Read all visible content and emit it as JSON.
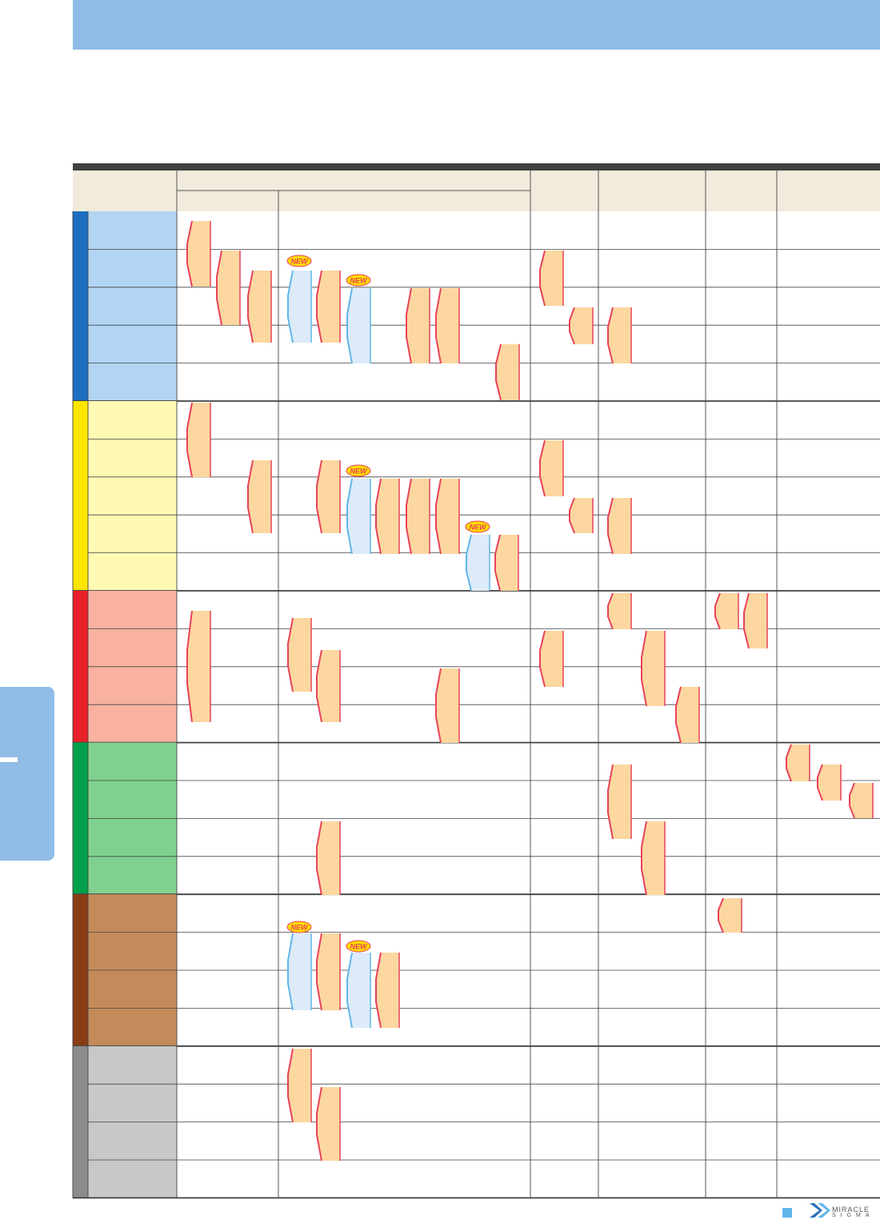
{
  "colors": {
    "header_band": "#90bde6",
    "table_header_bg": "#f1ebdc",
    "grid_line": "#404040",
    "tool_fill": "#fcd7a0",
    "tool_edge": "#e8425a",
    "new_fill": "#ddebf8",
    "new_edge": "#5fb6ea",
    "new_badge_fill": "#ffdd00",
    "new_badge_edge": "#e8425a",
    "new_badge_text": "#e8425a"
  },
  "table": {
    "groups": [
      {
        "name": "blue",
        "bar": "#1e6fc1",
        "cell": "#b2d5f3",
        "rows": 5
      },
      {
        "name": "yellow",
        "bar": "#ffe600",
        "cell": "#fff9b3",
        "rows": 5
      },
      {
        "name": "red",
        "bar": "#e8202a",
        "cell": "#f8b29f",
        "rows": 4
      },
      {
        "name": "green",
        "bar": "#00a04a",
        "cell": "#80d18f",
        "rows": 4
      },
      {
        "name": "brown",
        "bar": "#8a3d14",
        "cell": "#c48a59",
        "rows": 4
      },
      {
        "name": "gray",
        "bar": "#8c8c8c",
        "cell": "#c8c8c8",
        "rows": 4
      }
    ]
  },
  "new_badge": {
    "label": "NEW"
  },
  "icons": [
    "new-badge-icon",
    "miracle-sigma-logo-icon"
  ],
  "footer": {
    "brand_line1": "MIRACLE",
    "brand_line2": "SIGMA"
  }
}
